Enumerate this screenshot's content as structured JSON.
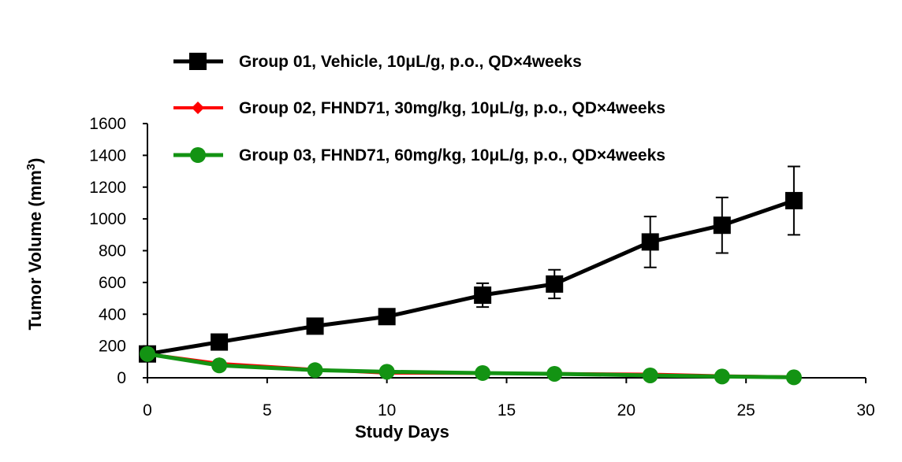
{
  "chart_data": {
    "type": "line",
    "title": "",
    "xlabel": "Study Days",
    "ylabel": "Tumor Volume (mm",
    "ylabel_sup": "3",
    "ylabel_end": ")",
    "xlim": [
      0,
      30
    ],
    "ylim": [
      0,
      1600
    ],
    "xticks": [
      0,
      5,
      10,
      15,
      20,
      25,
      30
    ],
    "yticks": [
      0,
      200,
      400,
      600,
      800,
      1000,
      1200,
      1400,
      1600
    ],
    "xtick_labels": [
      "0",
      "5",
      "10",
      "15",
      "20",
      "25",
      "30"
    ],
    "ytick_labels": [
      "0",
      "200",
      "400",
      "600",
      "800",
      "1000",
      "1200",
      "1400",
      "1600"
    ],
    "grid": false,
    "legend_position": "top",
    "x": [
      0,
      3,
      7,
      10,
      14,
      17,
      21,
      24,
      27
    ],
    "series": [
      {
        "name": "Group 01, Vehicle, 10μL/g, p.o., QD×4weeks",
        "color": "#000000",
        "marker": "square",
        "values": [
          150,
          225,
          325,
          385,
          520,
          590,
          855,
          960,
          1115
        ],
        "error": [
          0,
          0,
          0,
          0,
          75,
          90,
          160,
          175,
          215
        ]
      },
      {
        "name": "Group 02, FHND71, 30mg/kg, 10μL/g, p.o., QD×4weeks",
        "color": "#ff0000",
        "marker": "diamond",
        "values": [
          150,
          90,
          52,
          30,
          28,
          26,
          22,
          12,
          5
        ],
        "error": [
          0,
          0,
          0,
          0,
          0,
          0,
          0,
          0,
          0
        ]
      },
      {
        "name": "Group 03, FHND71, 60mg/kg, 10μL/g, p.o., QD×4weeks",
        "color": "#139313",
        "marker": "circle",
        "values": [
          150,
          78,
          48,
          38,
          30,
          25,
          15,
          8,
          3
        ],
        "error": [
          0,
          0,
          0,
          0,
          0,
          0,
          0,
          0,
          0
        ]
      }
    ]
  }
}
